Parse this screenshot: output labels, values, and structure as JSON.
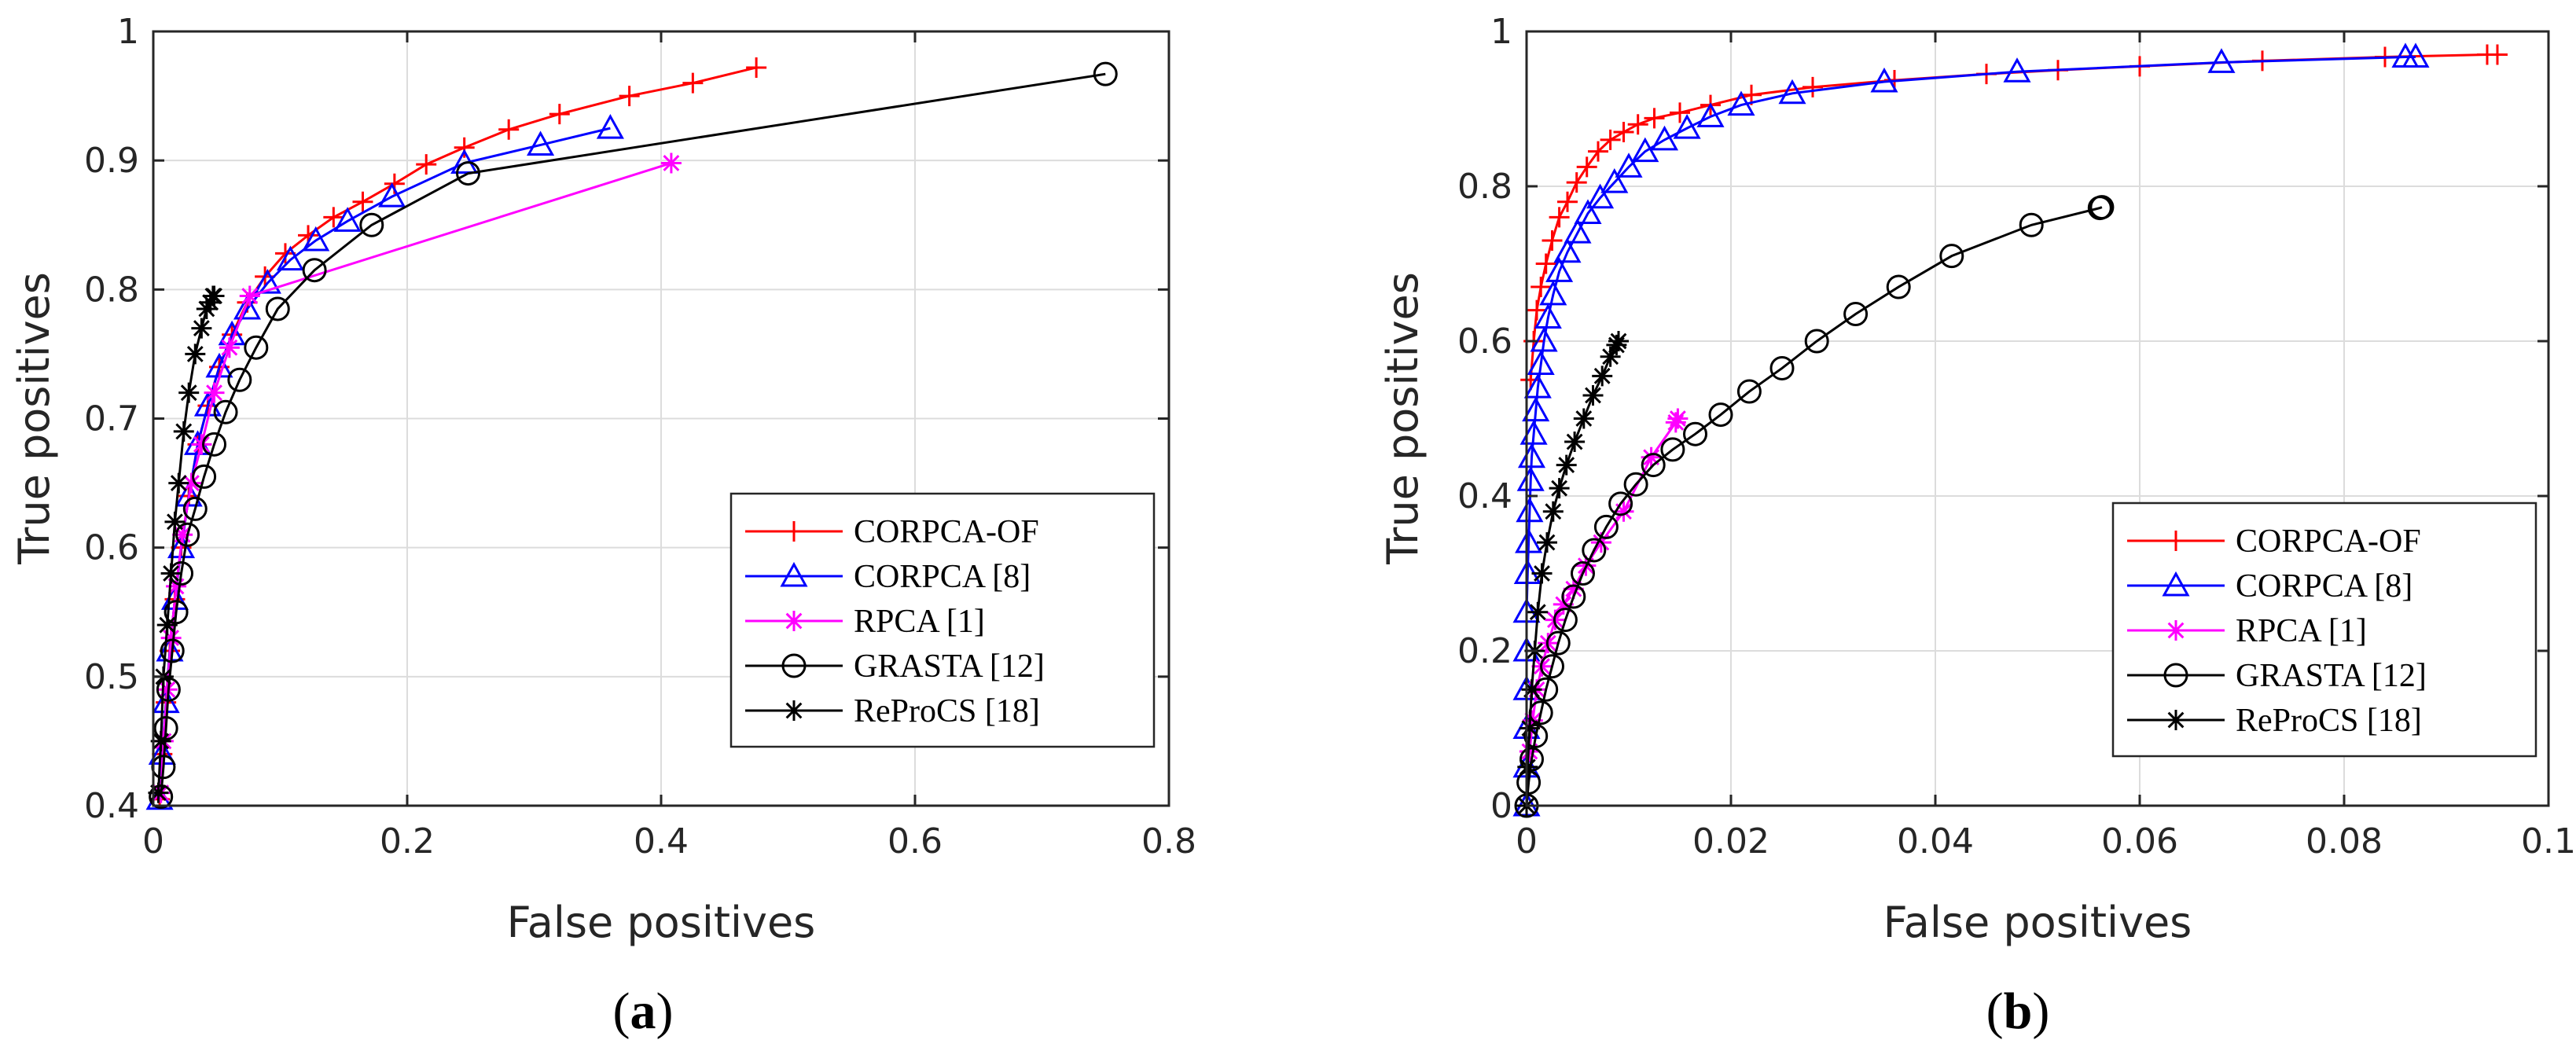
{
  "chart_data": [
    {
      "type": "line",
      "caption_letter": "a",
      "xlabel": "False positives",
      "ylabel": "True positives",
      "xlim": [
        0,
        0.8
      ],
      "ylim": [
        0.4,
        1
      ],
      "xticks": [
        0,
        0.2,
        0.4,
        0.6,
        0.8
      ],
      "xtick_labels": [
        "0",
        "0.2",
        "0.4",
        "0.6",
        "0.8"
      ],
      "yticks": [
        0.4,
        0.5,
        0.6,
        0.7,
        0.8,
        0.9,
        1
      ],
      "ytick_labels": [
        "0.4",
        "0.5",
        "0.6",
        "0.7",
        "0.8",
        "0.9",
        "1"
      ],
      "grid": true,
      "legend_position": "lower-right",
      "series": [
        {
          "name": "CORPCA-OF",
          "color": "#ff0000",
          "marker": "plus",
          "x": [
            0.005,
            0.007,
            0.01,
            0.013,
            0.017,
            0.022,
            0.028,
            0.035,
            0.043,
            0.052,
            0.062,
            0.074,
            0.088,
            0.104,
            0.122,
            0.142,
            0.165,
            0.19,
            0.215,
            0.245,
            0.28,
            0.32,
            0.375,
            0.425,
            0.475
          ],
          "y": [
            0.405,
            0.44,
            0.48,
            0.52,
            0.56,
            0.6,
            0.64,
            0.68,
            0.71,
            0.74,
            0.765,
            0.79,
            0.81,
            0.828,
            0.842,
            0.856,
            0.868,
            0.882,
            0.897,
            0.91,
            0.924,
            0.936,
            0.95,
            0.96,
            0.972
          ]
        },
        {
          "name": "CORPCA [8]",
          "color": "#0000ff",
          "marker": "triangle",
          "x": [
            0.005,
            0.007,
            0.01,
            0.013,
            0.017,
            0.022,
            0.028,
            0.035,
            0.043,
            0.052,
            0.062,
            0.074,
            0.09,
            0.108,
            0.128,
            0.153,
            0.188,
            0.245,
            0.305,
            0.36
          ],
          "y": [
            0.405,
            0.44,
            0.48,
            0.52,
            0.56,
            0.6,
            0.64,
            0.68,
            0.71,
            0.74,
            0.765,
            0.785,
            0.805,
            0.823,
            0.838,
            0.853,
            0.872,
            0.898,
            0.912,
            0.925
          ]
        },
        {
          "name": "RPCA [1]",
          "color": "#ff00ff",
          "marker": "star",
          "x": [
            0.006,
            0.008,
            0.011,
            0.014,
            0.018,
            0.023,
            0.03,
            0.038,
            0.048,
            0.06,
            0.076,
            0.408
          ],
          "y": [
            0.41,
            0.45,
            0.49,
            0.53,
            0.57,
            0.61,
            0.65,
            0.68,
            0.72,
            0.755,
            0.795,
            0.898
          ]
        },
        {
          "name": "GRASTA [12]",
          "color": "#000000",
          "marker": "circle",
          "x": [
            0.006,
            0.008,
            0.01,
            0.012,
            0.015,
            0.018,
            0.022,
            0.027,
            0.033,
            0.04,
            0.048,
            0.057,
            0.068,
            0.081,
            0.098,
            0.127,
            0.172,
            0.248,
            0.75
          ],
          "y": [
            0.407,
            0.43,
            0.46,
            0.49,
            0.52,
            0.55,
            0.58,
            0.61,
            0.63,
            0.655,
            0.68,
            0.705,
            0.73,
            0.755,
            0.785,
            0.815,
            0.85,
            0.89,
            0.967
          ]
        },
        {
          "name": "ReProCS [18]",
          "color": "#000000",
          "marker": "asterisk",
          "x": [
            0.004,
            0.006,
            0.008,
            0.011,
            0.014,
            0.017,
            0.02,
            0.024,
            0.028,
            0.033,
            0.038,
            0.042,
            0.045,
            0.047,
            0.048
          ],
          "y": [
            0.41,
            0.45,
            0.5,
            0.54,
            0.58,
            0.62,
            0.65,
            0.69,
            0.72,
            0.75,
            0.77,
            0.785,
            0.79,
            0.795,
            0.795
          ]
        }
      ]
    },
    {
      "type": "line",
      "caption_letter": "b",
      "xlabel": "False positives",
      "ylabel": "True positives",
      "xlim": [
        0,
        0.1
      ],
      "ylim": [
        0,
        1
      ],
      "xticks": [
        0,
        0.02,
        0.04,
        0.06,
        0.08,
        0.1
      ],
      "xtick_labels": [
        "0",
        "0.02",
        "0.04",
        "0.06",
        "0.08",
        "0.1"
      ],
      "yticks": [
        0,
        0.2,
        0.4,
        0.6,
        0.8,
        1
      ],
      "ytick_labels": [
        "0",
        "0.2",
        "0.4",
        "0.6",
        "0.8",
        "1"
      ],
      "grid": true,
      "legend_position": "lower-right",
      "series": [
        {
          "name": "CORPCA-OF",
          "color": "#ff0000",
          "marker": "plus",
          "x": [
            0.0004,
            0.0007,
            0.001,
            0.0014,
            0.0019,
            0.0025,
            0.0032,
            0.004,
            0.0049,
            0.0059,
            0.007,
            0.0082,
            0.0095,
            0.0109,
            0.0125,
            0.015,
            0.018,
            0.022,
            0.028,
            0.036,
            0.045,
            0.052,
            0.06,
            0.072,
            0.084,
            0.094,
            0.095
          ],
          "y": [
            0.55,
            0.6,
            0.64,
            0.67,
            0.7,
            0.73,
            0.76,
            0.78,
            0.805,
            0.825,
            0.845,
            0.86,
            0.87,
            0.88,
            0.888,
            0.895,
            0.905,
            0.918,
            0.928,
            0.937,
            0.945,
            0.95,
            0.955,
            0.962,
            0.967,
            0.97,
            0.97
          ]
        },
        {
          "name": "CORPCA [8]",
          "color": "#0000ff",
          "marker": "triangle",
          "x": [
            0,
            0,
            0,
            0,
            0,
            0,
            0.0001,
            0.0002,
            0.0003,
            0.0004,
            0.0005,
            0.0007,
            0.0009,
            0.0011,
            0.0014,
            0.0017,
            0.0021,
            0.0026,
            0.0032,
            0.004,
            0.005,
            0.006,
            0.0072,
            0.0086,
            0.01,
            0.0116,
            0.0135,
            0.0157,
            0.018,
            0.021,
            0.026,
            0.035,
            0.048,
            0.068,
            0.086,
            0.087
          ],
          "y": [
            0,
            0.05,
            0.1,
            0.15,
            0.2,
            0.25,
            0.3,
            0.34,
            0.38,
            0.42,
            0.45,
            0.48,
            0.51,
            0.54,
            0.57,
            0.6,
            0.63,
            0.66,
            0.69,
            0.715,
            0.74,
            0.765,
            0.785,
            0.805,
            0.825,
            0.845,
            0.86,
            0.875,
            0.89,
            0.905,
            0.92,
            0.935,
            0.948,
            0.96,
            0.967,
            0.967
          ]
        },
        {
          "name": "RPCA [1]",
          "color": "#ff00ff",
          "marker": "star",
          "x": [
            0.0003,
            0.0006,
            0.001,
            0.0015,
            0.0021,
            0.0028,
            0.0036,
            0.0046,
            0.0058,
            0.0073,
            0.0095,
            0.0122,
            0.0146,
            0.0148
          ],
          "y": [
            0.07,
            0.11,
            0.15,
            0.18,
            0.21,
            0.24,
            0.26,
            0.28,
            0.31,
            0.34,
            0.38,
            0.45,
            0.495,
            0.5
          ]
        },
        {
          "name": "GRASTA [12]",
          "color": "#000000",
          "marker": "circle",
          "x": [
            0,
            0.0002,
            0.0005,
            0.0009,
            0.0014,
            0.0019,
            0.0025,
            0.0031,
            0.0038,
            0.0046,
            0.0055,
            0.0066,
            0.0078,
            0.0092,
            0.0107,
            0.0124,
            0.0143,
            0.0165,
            0.019,
            0.0218,
            0.025,
            0.0284,
            0.0322,
            0.0364,
            0.0416,
            0.0494,
            0.0561,
            0.0563
          ],
          "y": [
            0,
            0.03,
            0.06,
            0.09,
            0.12,
            0.15,
            0.18,
            0.21,
            0.24,
            0.27,
            0.3,
            0.33,
            0.36,
            0.39,
            0.415,
            0.44,
            0.46,
            0.48,
            0.505,
            0.535,
            0.565,
            0.6,
            0.635,
            0.67,
            0.71,
            0.75,
            0.772,
            0.773
          ]
        },
        {
          "name": "ReProCS [18]",
          "color": "#000000",
          "marker": "asterisk",
          "x": [
            0,
            0.0001,
            0.0003,
            0.0005,
            0.0008,
            0.0011,
            0.0015,
            0.002,
            0.0026,
            0.0032,
            0.0039,
            0.0047,
            0.0056,
            0.0065,
            0.0074,
            0.0082,
            0.0088,
            0.009
          ],
          "y": [
            0,
            0.05,
            0.1,
            0.15,
            0.2,
            0.25,
            0.3,
            0.34,
            0.38,
            0.41,
            0.44,
            0.47,
            0.5,
            0.53,
            0.555,
            0.58,
            0.595,
            0.6
          ]
        }
      ]
    }
  ]
}
